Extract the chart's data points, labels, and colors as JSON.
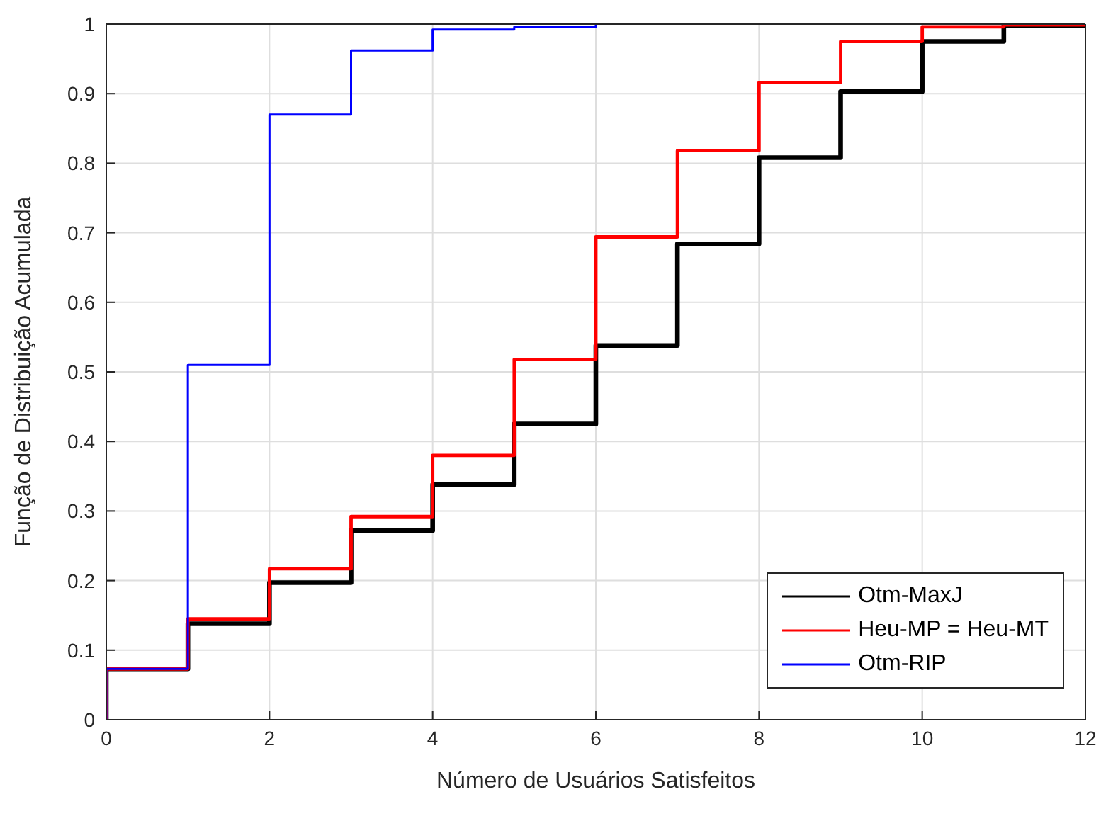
{
  "chart_data": {
    "type": "step",
    "xlabel": "Número de Usuários Satisfeitos",
    "ylabel": "Função de Distribuição Acumulada",
    "xlim": [
      0,
      12
    ],
    "xticks": [
      0,
      2,
      4,
      6,
      8,
      10,
      12
    ],
    "ylim": [
      0,
      1
    ],
    "yticks": [
      0,
      0.1,
      0.2,
      0.3,
      0.4,
      0.5,
      0.6,
      0.7,
      0.8,
      0.9,
      1
    ],
    "grid": true,
    "legend": "bottom right",
    "line_style": "solid",
    "marker": "none",
    "series": [
      {
        "name": "Otm-MaxJ",
        "color": "#000000",
        "x": [
          0,
          0,
          1,
          2,
          3,
          4,
          5,
          6,
          7,
          8,
          9,
          10,
          11,
          12
        ],
        "values": [
          0,
          0.073,
          0.138,
          0.197,
          0.272,
          0.338,
          0.425,
          0.538,
          0.684,
          0.808,
          0.903,
          0.975,
          0.998,
          1
        ]
      },
      {
        "name": "Heu-MP = Heu-MT",
        "color": "#ff0000",
        "x": [
          0,
          0,
          1,
          2,
          3,
          4,
          5,
          6,
          7,
          8,
          9,
          10,
          11,
          12
        ],
        "values": [
          0,
          0.073,
          0.145,
          0.217,
          0.292,
          0.38,
          0.518,
          0.694,
          0.818,
          0.916,
          0.975,
          0.996,
          0.999,
          1
        ]
      },
      {
        "name": "Otm-RIP",
        "color": "#0000ff",
        "x": [
          0,
          0,
          1,
          2,
          3,
          4,
          5,
          6
        ],
        "values": [
          0,
          0.073,
          0.51,
          0.87,
          0.962,
          0.992,
          0.996,
          1
        ]
      }
    ]
  }
}
